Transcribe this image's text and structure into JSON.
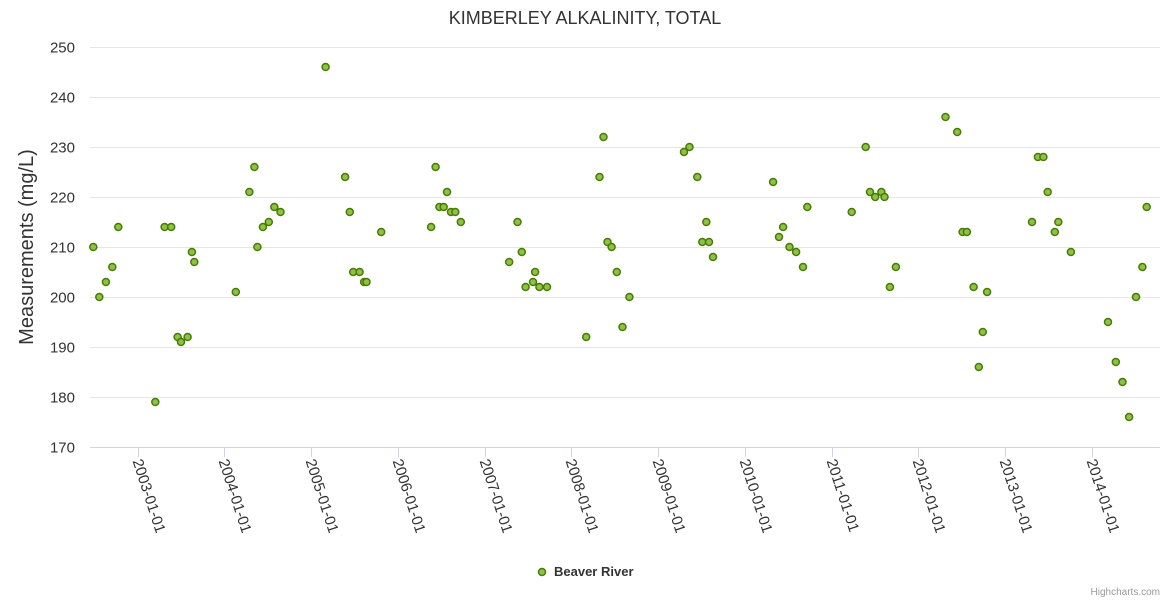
{
  "chart_data": {
    "type": "scatter",
    "title": "KIMBERLEY ALKALINITY, TOTAL",
    "ylabel": "Measurements (mg/L)",
    "xlabel": "",
    "ylim": [
      170,
      250
    ],
    "yticks": [
      170,
      180,
      190,
      200,
      210,
      220,
      230,
      240,
      250
    ],
    "xlim": [
      "2002-06-15",
      "2014-10-15"
    ],
    "xticks": [
      "2003-01-01",
      "2004-01-01",
      "2005-01-01",
      "2006-01-01",
      "2007-01-01",
      "2008-01-01",
      "2009-01-01",
      "2010-01-01",
      "2011-01-01",
      "2012-01-01",
      "2013-01-01",
      "2014-01-01"
    ],
    "legend_position": "bottom-center",
    "credits": "Highcharts.com",
    "colors": {
      "marker_fill": "#8bc34a",
      "marker_stroke": "#4a7a00"
    },
    "series": [
      {
        "name": "Beaver River",
        "points": [
          [
            "2002-06-29",
            210
          ],
          [
            "2002-07-24",
            200
          ],
          [
            "2002-08-21",
            203
          ],
          [
            "2002-09-17",
            206
          ],
          [
            "2002-10-12",
            214
          ],
          [
            "2003-03-17",
            179
          ],
          [
            "2003-04-25",
            214
          ],
          [
            "2003-05-23",
            214
          ],
          [
            "2003-06-19",
            192
          ],
          [
            "2003-07-03",
            191
          ],
          [
            "2003-07-31",
            192
          ],
          [
            "2003-08-18",
            209
          ],
          [
            "2003-08-28",
            207
          ],
          [
            "2004-02-19",
            201
          ],
          [
            "2004-04-16",
            221
          ],
          [
            "2004-05-07",
            226
          ],
          [
            "2004-05-20",
            210
          ],
          [
            "2004-06-12",
            214
          ],
          [
            "2004-07-07",
            215
          ],
          [
            "2004-07-30",
            218
          ],
          [
            "2004-08-25",
            217
          ],
          [
            "2005-03-03",
            246
          ],
          [
            "2005-05-24",
            224
          ],
          [
            "2005-06-13",
            217
          ],
          [
            "2005-06-27",
            205
          ],
          [
            "2005-07-24",
            205
          ],
          [
            "2005-08-12",
            203
          ],
          [
            "2005-08-22",
            203
          ],
          [
            "2005-10-23",
            213
          ],
          [
            "2006-05-21",
            214
          ],
          [
            "2006-06-09",
            226
          ],
          [
            "2006-06-25",
            218
          ],
          [
            "2006-07-13",
            218
          ],
          [
            "2006-07-27",
            221
          ],
          [
            "2006-08-13",
            217
          ],
          [
            "2006-08-31",
            217
          ],
          [
            "2006-09-23",
            215
          ],
          [
            "2007-04-15",
            207
          ],
          [
            "2007-05-20",
            215
          ],
          [
            "2007-06-07",
            209
          ],
          [
            "2007-06-23",
            202
          ],
          [
            "2007-07-24",
            203
          ],
          [
            "2007-08-02",
            205
          ],
          [
            "2007-08-20",
            202
          ],
          [
            "2007-09-21",
            202
          ],
          [
            "2008-03-04",
            192
          ],
          [
            "2008-04-29",
            224
          ],
          [
            "2008-05-16",
            232
          ],
          [
            "2008-06-02",
            211
          ],
          [
            "2008-06-19",
            210
          ],
          [
            "2008-07-11",
            205
          ],
          [
            "2008-08-04",
            194
          ],
          [
            "2008-09-02",
            200
          ],
          [
            "2009-04-20",
            229
          ],
          [
            "2009-05-13",
            230
          ],
          [
            "2009-06-15",
            224
          ],
          [
            "2009-07-06",
            211
          ],
          [
            "2009-07-23",
            215
          ],
          [
            "2009-08-03",
            211
          ],
          [
            "2009-08-20",
            208
          ],
          [
            "2010-04-30",
            223
          ],
          [
            "2010-05-25",
            212
          ],
          [
            "2010-06-11",
            214
          ],
          [
            "2010-07-08",
            210
          ],
          [
            "2010-08-05",
            209
          ],
          [
            "2010-09-03",
            206
          ],
          [
            "2010-09-21",
            218
          ],
          [
            "2011-03-27",
            217
          ],
          [
            "2011-05-25",
            230
          ],
          [
            "2011-06-12",
            221
          ],
          [
            "2011-07-04",
            220
          ],
          [
            "2011-07-30",
            221
          ],
          [
            "2011-08-12",
            220
          ],
          [
            "2011-09-04",
            202
          ],
          [
            "2011-09-29",
            206
          ],
          [
            "2012-04-25",
            236
          ],
          [
            "2012-06-13",
            233
          ],
          [
            "2012-07-06",
            213
          ],
          [
            "2012-07-24",
            213
          ],
          [
            "2012-08-21",
            202
          ],
          [
            "2012-09-12",
            186
          ],
          [
            "2012-09-29",
            193
          ],
          [
            "2012-10-17",
            201
          ],
          [
            "2013-04-24",
            215
          ],
          [
            "2013-05-19",
            228
          ],
          [
            "2013-06-11",
            228
          ],
          [
            "2013-06-29",
            221
          ],
          [
            "2013-07-29",
            213
          ],
          [
            "2013-08-13",
            215
          ],
          [
            "2013-10-05",
            209
          ],
          [
            "2014-03-10",
            195
          ],
          [
            "2014-04-12",
            187
          ],
          [
            "2014-05-10",
            183
          ],
          [
            "2014-06-07",
            176
          ],
          [
            "2014-07-06",
            200
          ],
          [
            "2014-08-02",
            206
          ],
          [
            "2014-08-20",
            218
          ]
        ]
      }
    ]
  }
}
